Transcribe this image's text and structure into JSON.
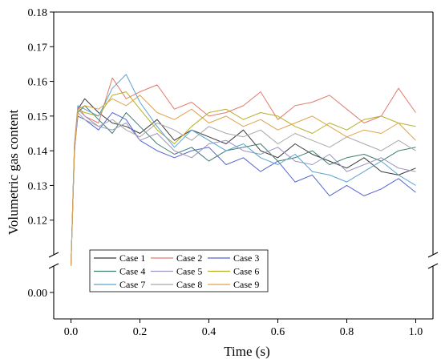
{
  "chart_data": {
    "type": "line",
    "title": "",
    "xlabel": "Time (s)",
    "ylabel": "Volumetric gas content",
    "xlim": [
      -0.05,
      1.05
    ],
    "ylim_upper": [
      0.11,
      0.18
    ],
    "ylim_lower": [
      -0.015,
      0.015
    ],
    "axis_break": "y between 0.00 and 0.11",
    "x_ticks": [
      "0.0",
      "0.2",
      "0.4",
      "0.6",
      "0.8",
      "1.0"
    ],
    "y_ticks_upper": [
      "0.12",
      "0.13",
      "0.14",
      "0.15",
      "0.16",
      "0.17",
      "0.18"
    ],
    "y_ticks_lower": [
      "0.00"
    ],
    "grid": false,
    "legend_position": "bottom-left",
    "legend_columns": 3,
    "series": [
      {
        "name": "Case 1",
        "color": "#3a3a3a",
        "x": [
          0.0,
          0.01,
          0.02,
          0.04,
          0.08,
          0.12,
          0.16,
          0.2,
          0.25,
          0.3,
          0.35,
          0.4,
          0.45,
          0.5,
          0.55,
          0.6,
          0.65,
          0.7,
          0.75,
          0.8,
          0.85,
          0.9,
          0.95,
          1.0
        ],
        "y": [
          0.105,
          0.14,
          0.152,
          0.155,
          0.151,
          0.148,
          0.147,
          0.145,
          0.149,
          0.143,
          0.146,
          0.144,
          0.142,
          0.146,
          0.14,
          0.138,
          0.142,
          0.139,
          0.137,
          0.135,
          0.138,
          0.134,
          0.133,
          0.135
        ]
      },
      {
        "name": "Case 2",
        "color": "#e07c6e",
        "x": [
          0.0,
          0.01,
          0.02,
          0.04,
          0.08,
          0.12,
          0.16,
          0.2,
          0.25,
          0.3,
          0.35,
          0.4,
          0.45,
          0.5,
          0.55,
          0.6,
          0.65,
          0.7,
          0.75,
          0.8,
          0.85,
          0.9,
          0.95,
          1.0
        ],
        "y": [
          0.105,
          0.142,
          0.153,
          0.15,
          0.148,
          0.161,
          0.155,
          0.157,
          0.159,
          0.152,
          0.154,
          0.15,
          0.151,
          0.153,
          0.157,
          0.149,
          0.153,
          0.154,
          0.156,
          0.152,
          0.148,
          0.15,
          0.158,
          0.151
        ]
      },
      {
        "name": "Case 3",
        "color": "#5566d0",
        "x": [
          0.0,
          0.01,
          0.02,
          0.04,
          0.08,
          0.12,
          0.16,
          0.2,
          0.25,
          0.3,
          0.35,
          0.4,
          0.45,
          0.5,
          0.55,
          0.6,
          0.65,
          0.7,
          0.75,
          0.8,
          0.85,
          0.9,
          0.95,
          1.0
        ],
        "y": [
          0.105,
          0.14,
          0.15,
          0.149,
          0.146,
          0.151,
          0.149,
          0.143,
          0.14,
          0.138,
          0.14,
          0.141,
          0.136,
          0.138,
          0.134,
          0.137,
          0.131,
          0.133,
          0.127,
          0.13,
          0.127,
          0.129,
          0.132,
          0.128
        ]
      },
      {
        "name": "Case 4",
        "color": "#3f7d72",
        "x": [
          0.0,
          0.01,
          0.02,
          0.04,
          0.08,
          0.12,
          0.16,
          0.2,
          0.25,
          0.3,
          0.35,
          0.4,
          0.45,
          0.5,
          0.55,
          0.6,
          0.65,
          0.7,
          0.75,
          0.8,
          0.85,
          0.9,
          0.95,
          1.0
        ],
        "y": [
          0.105,
          0.141,
          0.151,
          0.153,
          0.149,
          0.145,
          0.151,
          0.147,
          0.142,
          0.139,
          0.141,
          0.137,
          0.14,
          0.141,
          0.142,
          0.137,
          0.138,
          0.14,
          0.136,
          0.138,
          0.139,
          0.137,
          0.14,
          0.141
        ]
      },
      {
        "name": "Case 5",
        "color": "#9b96bf",
        "x": [
          0.0,
          0.01,
          0.02,
          0.04,
          0.08,
          0.12,
          0.16,
          0.2,
          0.25,
          0.3,
          0.35,
          0.4,
          0.45,
          0.5,
          0.55,
          0.6,
          0.65,
          0.7,
          0.75,
          0.8,
          0.85,
          0.9,
          0.95,
          1.0
        ],
        "y": [
          0.105,
          0.139,
          0.152,
          0.15,
          0.147,
          0.146,
          0.148,
          0.143,
          0.145,
          0.14,
          0.138,
          0.142,
          0.143,
          0.14,
          0.139,
          0.141,
          0.137,
          0.136,
          0.139,
          0.134,
          0.136,
          0.138,
          0.135,
          0.134
        ]
      },
      {
        "name": "Case 6",
        "color": "#b7b027",
        "x": [
          0.0,
          0.01,
          0.02,
          0.04,
          0.08,
          0.12,
          0.16,
          0.2,
          0.25,
          0.3,
          0.35,
          0.4,
          0.45,
          0.5,
          0.55,
          0.6,
          0.65,
          0.7,
          0.75,
          0.8,
          0.85,
          0.9,
          0.95,
          1.0
        ],
        "y": [
          0.105,
          0.14,
          0.152,
          0.151,
          0.15,
          0.156,
          0.157,
          0.152,
          0.146,
          0.142,
          0.147,
          0.151,
          0.152,
          0.149,
          0.151,
          0.15,
          0.147,
          0.145,
          0.148,
          0.146,
          0.149,
          0.15,
          0.148,
          0.147
        ]
      },
      {
        "name": "Case 7",
        "color": "#5ba3d1",
        "x": [
          0.0,
          0.01,
          0.02,
          0.04,
          0.08,
          0.12,
          0.16,
          0.2,
          0.25,
          0.3,
          0.35,
          0.4,
          0.45,
          0.5,
          0.55,
          0.6,
          0.65,
          0.7,
          0.75,
          0.8,
          0.85,
          0.9,
          0.95,
          1.0
        ],
        "y": [
          0.105,
          0.14,
          0.153,
          0.152,
          0.15,
          0.158,
          0.162,
          0.154,
          0.147,
          0.141,
          0.146,
          0.143,
          0.14,
          0.142,
          0.138,
          0.136,
          0.139,
          0.134,
          0.133,
          0.131,
          0.134,
          0.137,
          0.133,
          0.13
        ]
      },
      {
        "name": "Case 8",
        "color": "#a8a8a8",
        "x": [
          0.0,
          0.01,
          0.02,
          0.04,
          0.08,
          0.12,
          0.16,
          0.2,
          0.25,
          0.3,
          0.35,
          0.4,
          0.45,
          0.5,
          0.55,
          0.6,
          0.65,
          0.7,
          0.75,
          0.8,
          0.85,
          0.9,
          0.95,
          1.0
        ],
        "y": [
          0.105,
          0.141,
          0.151,
          0.149,
          0.147,
          0.149,
          0.146,
          0.144,
          0.148,
          0.146,
          0.143,
          0.147,
          0.145,
          0.144,
          0.146,
          0.142,
          0.145,
          0.143,
          0.141,
          0.144,
          0.142,
          0.14,
          0.143,
          0.14
        ]
      },
      {
        "name": "Case 9",
        "color": "#e0a24a",
        "x": [
          0.0,
          0.01,
          0.02,
          0.04,
          0.08,
          0.12,
          0.16,
          0.2,
          0.25,
          0.3,
          0.35,
          0.4,
          0.45,
          0.5,
          0.55,
          0.6,
          0.65,
          0.7,
          0.75,
          0.8,
          0.85,
          0.9,
          0.95,
          1.0
        ],
        "y": [
          0.105,
          0.14,
          0.152,
          0.153,
          0.152,
          0.155,
          0.153,
          0.156,
          0.151,
          0.149,
          0.152,
          0.148,
          0.15,
          0.147,
          0.149,
          0.146,
          0.148,
          0.15,
          0.147,
          0.144,
          0.146,
          0.145,
          0.148,
          0.143
        ]
      }
    ]
  }
}
